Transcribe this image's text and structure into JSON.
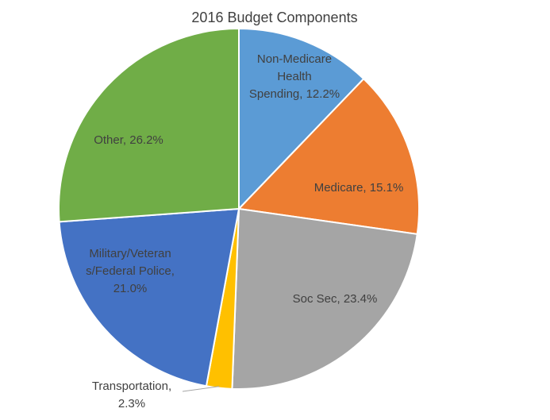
{
  "chart_data": {
    "type": "pie",
    "title": "2016 Budget Components",
    "slices": [
      {
        "name": "Non-Medicare Health Spending",
        "value": 12.2,
        "label_lines": [
          "Non-Medicare",
          "Health",
          "Spending, 12.2%"
        ],
        "color": "#5b9bd5"
      },
      {
        "name": "Medicare",
        "value": 15.1,
        "label_lines": [
          "Medicare, 15.1%"
        ],
        "color": "#ed7d31"
      },
      {
        "name": "Soc Sec",
        "value": 23.4,
        "label_lines": [
          "Soc Sec, 23.4%"
        ],
        "color": "#a5a5a5"
      },
      {
        "name": "Transportation",
        "value": 2.3,
        "label_lines": [
          "Transportation,",
          "2.3%"
        ],
        "color": "#ffc000"
      },
      {
        "name": "Military/Veterans/Federal Police",
        "value": 21.0,
        "label_lines": [
          "Military/Veteran",
          "s/Federal Police,",
          "21.0%"
        ],
        "color": "#4472c4"
      },
      {
        "name": "Other",
        "value": 26.2,
        "label_lines": [
          "Other, 26.2%"
        ],
        "color": "#70ad47"
      }
    ],
    "legend": "none"
  }
}
